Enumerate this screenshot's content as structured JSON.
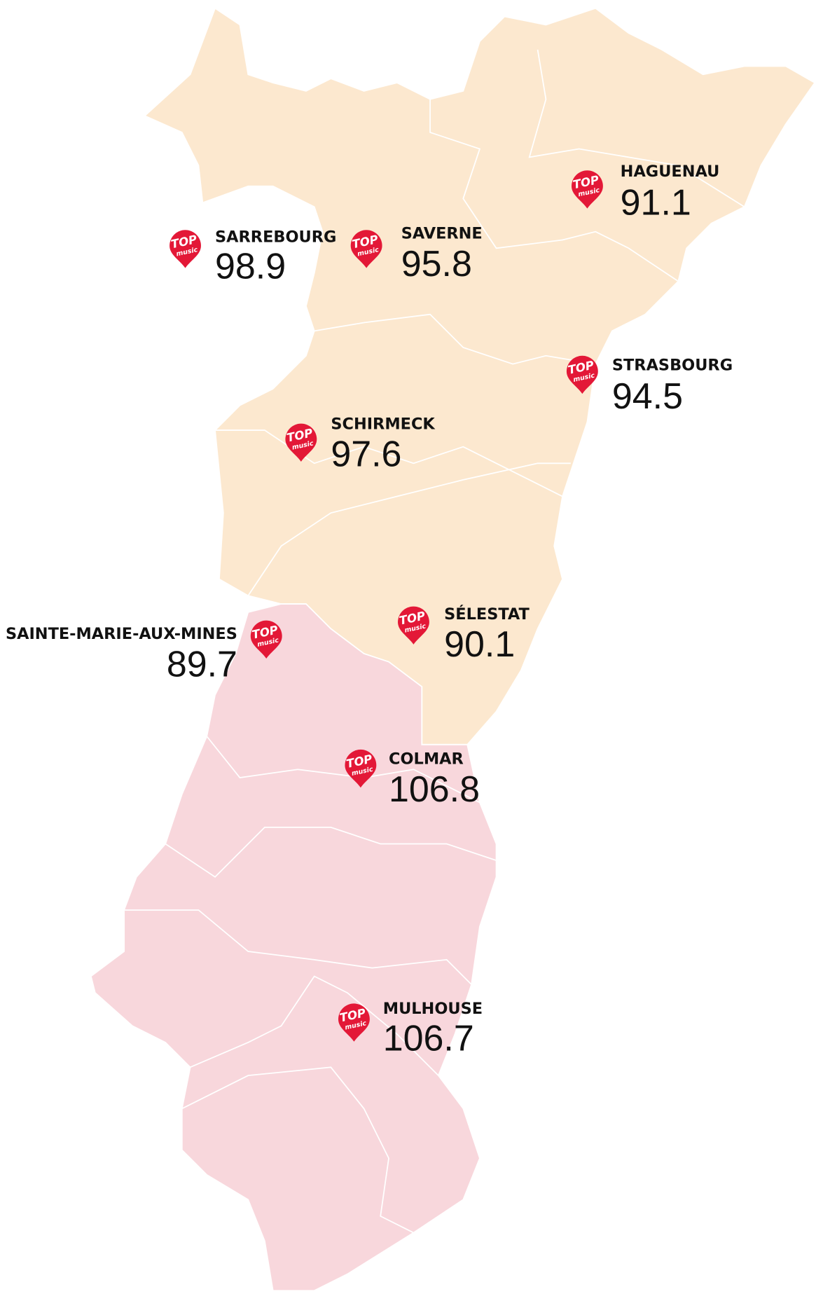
{
  "pin_logo": {
    "top": "TOP",
    "bottom": "music"
  },
  "stations": [
    {
      "name": "HAGUENAU",
      "frequency": "91.1"
    },
    {
      "name": "SARREBOURG",
      "frequency": "98.9"
    },
    {
      "name": "SAVERNE",
      "frequency": "95.8"
    },
    {
      "name": "STRASBOURG",
      "frequency": "94.5"
    },
    {
      "name": "SCHIRMECK",
      "frequency": "97.6"
    },
    {
      "name": "SÉLESTAT",
      "frequency": "90.1"
    },
    {
      "name": "SAINTE-MARIE-AUX-MINES",
      "frequency": "89.7"
    },
    {
      "name": "COLMAR",
      "frequency": "106.8"
    },
    {
      "name": "MULHOUSE",
      "frequency": "106.7"
    }
  ]
}
